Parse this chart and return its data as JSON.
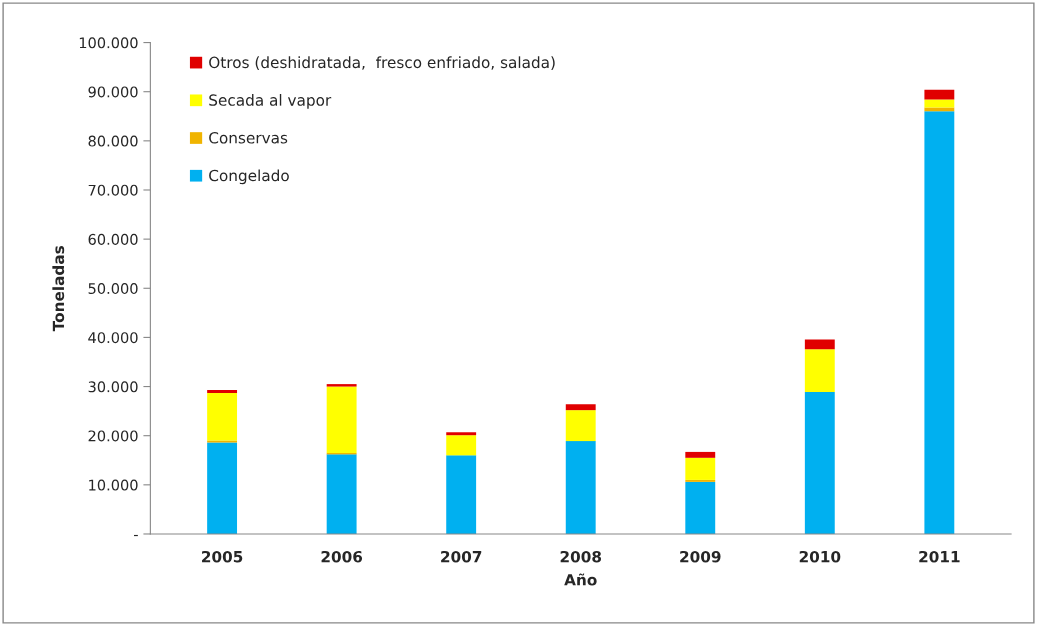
{
  "chart_data": {
    "type": "bar",
    "stacked": true,
    "xlabel": "Año",
    "ylabel": "Toneladas",
    "categories": [
      "2005",
      "2006",
      "2007",
      "2008",
      "2009",
      "2010",
      "2011"
    ],
    "series": [
      {
        "name": "Congelado",
        "color": "#00b0f0",
        "values": [
          18600,
          16200,
          16000,
          18900,
          10600,
          28900,
          86000
        ]
      },
      {
        "name": "Conservas",
        "color": "#f0b400",
        "values": [
          400,
          300,
          null,
          null,
          400,
          null,
          800
        ]
      },
      {
        "name": "Secada al vapor",
        "color": "#ffff00",
        "values": [
          9700,
          13500,
          4100,
          6300,
          4500,
          8700,
          1600
        ]
      },
      {
        "name": "Otros (deshidratada,  fresco enfriado, salada)",
        "color": "#e00000",
        "values": [
          600,
          500,
          600,
          1200,
          1200,
          2000,
          2000
        ]
      }
    ],
    "ylim": [
      0,
      100000
    ],
    "yticks": [
      {
        "value": 0,
        "label": "-"
      },
      {
        "value": 10000,
        "label": "10.000"
      },
      {
        "value": 20000,
        "label": "20.000"
      },
      {
        "value": 30000,
        "label": "30.000"
      },
      {
        "value": 40000,
        "label": "40.000"
      },
      {
        "value": 50000,
        "label": "50.000"
      },
      {
        "value": 60000,
        "label": "60.000"
      },
      {
        "value": 70000,
        "label": "70.000"
      },
      {
        "value": 80000,
        "label": "80.000"
      },
      {
        "value": 90000,
        "label": "90.000"
      },
      {
        "value": 100000,
        "label": "100.000"
      }
    ],
    "grid": false,
    "legend": "top left"
  }
}
